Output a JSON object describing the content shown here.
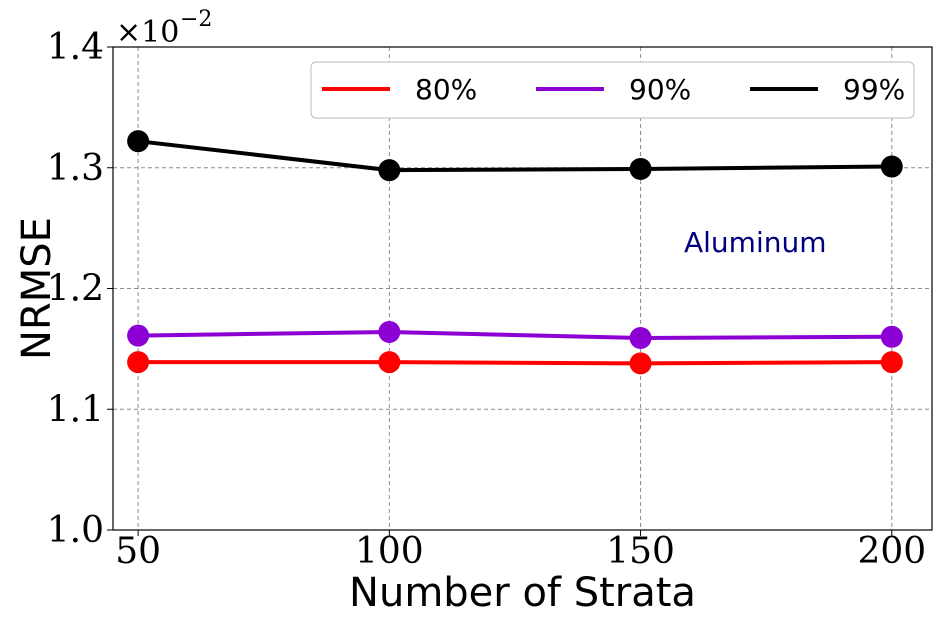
{
  "chart_data": {
    "type": "line",
    "xlabel": "Number of Strata",
    "ylabel": "NRMSE",
    "x": [
      50,
      100,
      150,
      200
    ],
    "x_tick_labels": [
      "50",
      "100",
      "150",
      "200"
    ],
    "xlim": [
      45,
      208
    ],
    "ylim": [
      1.0,
      1.4
    ],
    "y_ticks": [
      1.0,
      1.1,
      1.2,
      1.3,
      1.4
    ],
    "y_tick_labels": [
      "1.0",
      "1.1",
      "1.2",
      "1.3",
      "1.4"
    ],
    "y_multiplier": {
      "base": "×10",
      "exponent": "−2"
    },
    "grid": true,
    "legend_position": "top-right",
    "annotation": {
      "text": "Aluminum",
      "color": "#00007f"
    },
    "series": [
      {
        "name": "80%",
        "color": "#ff0000",
        "values": [
          1.139,
          1.139,
          1.138,
          1.139
        ]
      },
      {
        "name": "90%",
        "color": "#8c00d4",
        "values": [
          1.161,
          1.164,
          1.159,
          1.16
        ]
      },
      {
        "name": "99%",
        "color": "#000000",
        "values": [
          1.322,
          1.298,
          1.299,
          1.301
        ]
      }
    ]
  }
}
